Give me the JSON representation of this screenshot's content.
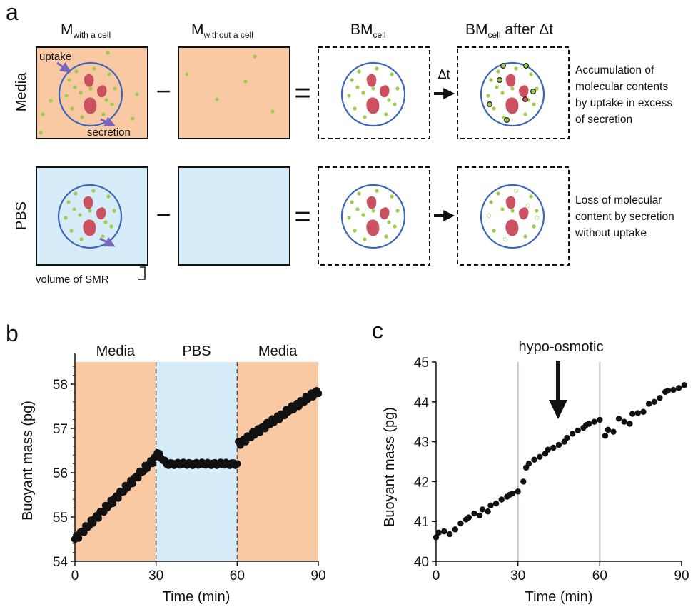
{
  "panel_a": {
    "letter": "a",
    "col_headers": {
      "m_with": {
        "main": "M",
        "sub": "with a cell"
      },
      "m_without": {
        "main": "M",
        "sub": "without a cell"
      },
      "bm_cell": {
        "main": "BM",
        "sub": "cell"
      },
      "bm_after": {
        "main": "BM",
        "sub": "cell",
        "suffix": " after Δt"
      }
    },
    "row_labels": {
      "media": "Media",
      "pbs": "PBS"
    },
    "ops": {
      "minus": "−",
      "equals": "="
    },
    "delta_t": "Δt",
    "uptake_label": "uptake",
    "secretion_label": "secretion",
    "volume_label": "volume of SMR",
    "media_text": [
      "Accumulation of",
      "molecular contents",
      "by uptake in excess",
      "of secretion"
    ],
    "pbs_text": [
      "Loss of molecular",
      "content by secretion",
      "without uptake"
    ],
    "colors": {
      "media_fill": "#f9c9a3",
      "pbs_fill": "#d6ecf8",
      "cell_outline": "#3a66b8",
      "organelle": "#cc5160",
      "particle": "#9ccc4a",
      "arrow": "#7766bb"
    }
  },
  "panel_b": {
    "letter": "b",
    "region_labels": [
      "Media",
      "PBS",
      "Media"
    ],
    "chart_data": {
      "type": "scatter",
      "xlabel": "Time (min)",
      "ylabel": "Buoyant mass (pg)",
      "xlim": [
        0,
        90
      ],
      "ylim": [
        54,
        58.5
      ],
      "xticks": [
        "0",
        "30",
        "60",
        "90"
      ],
      "yticks": [
        "54",
        "55",
        "56",
        "57",
        "58"
      ],
      "regions": [
        {
          "label": "Media",
          "x": [
            0,
            30
          ],
          "color": "#f9c9a3"
        },
        {
          "label": "PBS",
          "x": [
            30,
            60
          ],
          "color": "#d6ecf8"
        },
        {
          "label": "Media",
          "x": [
            60,
            90
          ],
          "color": "#f9c9a3"
        }
      ],
      "segments": [
        {
          "x_start": 0,
          "x_end": 30,
          "y_start": 54.5,
          "y_end": 56.35,
          "n": 46
        },
        {
          "x_start": 30.5,
          "x_end": 60,
          "y_start": 56.45,
          "y_end": 56.18,
          "n": 44,
          "flat_value": 56.2
        },
        {
          "x_start": 60.5,
          "x_end": 90,
          "y_start": 56.65,
          "y_end": 57.85,
          "n": 46
        }
      ]
    }
  },
  "panel_c": {
    "letter": "c",
    "annotation": "hypo-osmotic",
    "chart_data": {
      "type": "scatter",
      "xlabel": "Time (min)",
      "ylabel": "Buoyant mass (pg)",
      "xlim": [
        0,
        90
      ],
      "ylim": [
        40,
        45
      ],
      "xticks": [
        "0",
        "30",
        "60",
        "90"
      ],
      "yticks": [
        "40",
        "41",
        "42",
        "43",
        "44",
        "45"
      ],
      "vlines": [
        30,
        60
      ],
      "x": [
        0,
        1,
        3,
        5,
        7,
        9,
        11,
        12,
        14,
        16,
        17,
        19,
        20,
        22,
        24,
        26,
        27,
        28,
        30,
        32,
        33,
        34,
        36,
        38,
        40,
        41,
        43,
        45,
        47,
        48,
        50,
        52,
        54,
        55,
        56,
        58,
        60,
        62,
        63,
        65,
        67,
        69,
        71,
        72,
        74,
        76,
        78,
        80,
        82,
        84,
        85,
        87,
        89,
        91
      ],
      "y": [
        40.6,
        40.72,
        40.75,
        40.68,
        40.8,
        40.95,
        41.05,
        41.1,
        41.2,
        41.15,
        41.3,
        41.25,
        41.4,
        41.45,
        41.55,
        41.62,
        41.67,
        41.7,
        41.75,
        42.0,
        42.35,
        42.45,
        42.55,
        42.62,
        42.7,
        42.8,
        42.85,
        42.92,
        43.0,
        43.1,
        43.2,
        43.28,
        43.35,
        43.42,
        43.45,
        43.5,
        43.55,
        43.15,
        43.3,
        43.25,
        43.58,
        43.5,
        43.45,
        43.7,
        43.72,
        43.75,
        43.95,
        44.0,
        44.1,
        44.25,
        44.28,
        44.3,
        44.35,
        44.42
      ]
    }
  }
}
